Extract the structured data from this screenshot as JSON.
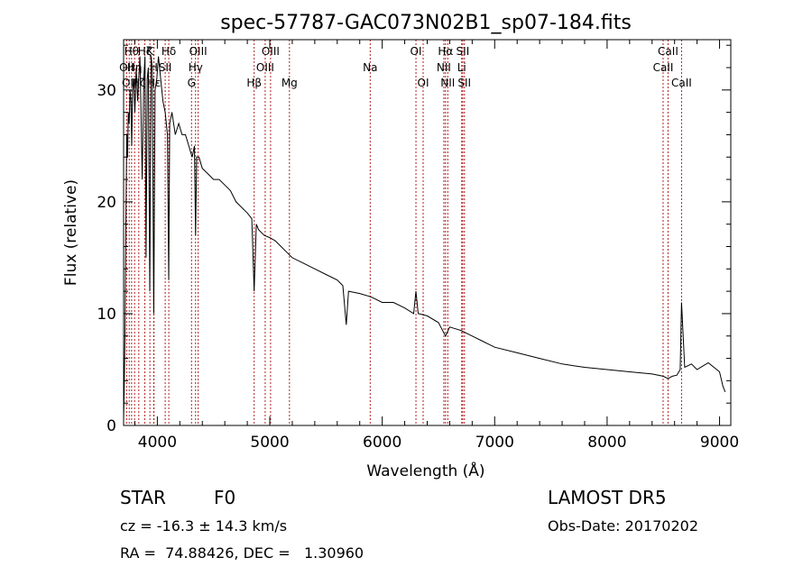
{
  "chart_data": {
    "type": "line",
    "title": "spec-57787-GAC073N02B1_sp07-184.fits",
    "xlabel": "Wavelength (Å)",
    "ylabel": "Flux (relative)",
    "xlim": [
      3700,
      9100
    ],
    "ylim": [
      0,
      34.5
    ],
    "x_ticks": [
      4000,
      5000,
      6000,
      7000,
      8000,
      9000
    ],
    "y_ticks": [
      0,
      10,
      20,
      30
    ],
    "grid": false,
    "series": [
      {
        "color": "#000000",
        "x": [
          3700,
          3705,
          3712,
          3720,
          3728,
          3735,
          3742,
          3750,
          3758,
          3765,
          3772,
          3780,
          3790,
          3800,
          3812,
          3825,
          3835,
          3845,
          3855,
          3865,
          3880,
          3890,
          3900,
          3910,
          3920,
          3933,
          3945,
          3955,
          3968,
          3980,
          3995,
          4010,
          4030,
          4050,
          4070,
          4090,
          4101,
          4110,
          4130,
          4160,
          4190,
          4220,
          4250,
          4280,
          4310,
          4330,
          4340,
          4350,
          4370,
          4400,
          4450,
          4500,
          4550,
          4600,
          4650,
          4700,
          4750,
          4800,
          4840,
          4861,
          4880,
          4900,
          4950,
          5000,
          5050,
          5100,
          5150,
          5200,
          5300,
          5400,
          5500,
          5600,
          5650,
          5680,
          5700,
          5800,
          5900,
          6000,
          6100,
          6200,
          6280,
          6300,
          6320,
          6400,
          6500,
          6563,
          6600,
          6700,
          6800,
          6900,
          7000,
          7200,
          7400,
          7600,
          7800,
          8000,
          8200,
          8400,
          8498,
          8542,
          8580,
          8620,
          8650,
          8662,
          8690,
          8750,
          8800,
          8850,
          8900,
          8950,
          9000,
          9030,
          9050
        ],
        "y": [
          0.5,
          3,
          8,
          18,
          26,
          24,
          28,
          27,
          30,
          29,
          25,
          30,
          31,
          28,
          32,
          29,
          31,
          33,
          28,
          22,
          31,
          33,
          15,
          31,
          32,
          12,
          33,
          32,
          10,
          30,
          31,
          33,
          31,
          29,
          28,
          26,
          13,
          27,
          28,
          26,
          27,
          26,
          26,
          25,
          24,
          25,
          17,
          24,
          24,
          23,
          22.5,
          22,
          22,
          21.5,
          21,
          20,
          19.5,
          19,
          18.5,
          12,
          18,
          17.5,
          17,
          16.8,
          16.5,
          16,
          15.5,
          15,
          14.5,
          14,
          13.5,
          13,
          12.5,
          9,
          12,
          11.8,
          11.5,
          11,
          11,
          10.5,
          10,
          12,
          10,
          9.8,
          9.2,
          8,
          8.8,
          8.5,
          8,
          7.5,
          7,
          6.5,
          6,
          5.5,
          5.2,
          5,
          4.8,
          4.6,
          4.4,
          4.2,
          4.4,
          4.5,
          5,
          11,
          5.2,
          5.5,
          5,
          5.3,
          5.6,
          5.2,
          4.8,
          3.5,
          3
        ]
      }
    ],
    "lines": [
      {
        "x": 3727,
        "label": "OII",
        "row": 2
      },
      {
        "x": 3750,
        "label": "OII",
        "row": 3
      },
      {
        "x": 3771,
        "label": "Hθ",
        "row": 1
      },
      {
        "x": 3798,
        "label": "Hη",
        "row": 2
      },
      {
        "x": 3835,
        "label": "Hζ",
        "row": 3
      },
      {
        "x": 3889,
        "label": "Hζ",
        "row": 1
      },
      {
        "x": 3934,
        "label": "K",
        "row": 1
      },
      {
        "x": 3968,
        "label": "H",
        "row": 2
      },
      {
        "x": 3970,
        "label": "Hε",
        "row": 3
      },
      {
        "x": 4070,
        "label": "SII",
        "row": 2
      },
      {
        "x": 4102,
        "label": "Hδ",
        "row": 1
      },
      {
        "x": 4304,
        "label": "G",
        "row": 3
      },
      {
        "x": 4340,
        "label": "Hγ",
        "row": 2
      },
      {
        "x": 4363,
        "label": "OIII",
        "row": 1
      },
      {
        "x": 4861,
        "label": "Hβ",
        "row": 3
      },
      {
        "x": 4959,
        "label": "OIII",
        "row": 2
      },
      {
        "x": 5007,
        "label": "OIII",
        "row": 1
      },
      {
        "x": 5175,
        "label": "Mg",
        "row": 3
      },
      {
        "x": 5893,
        "label": "Na",
        "row": 2
      },
      {
        "x": 6300,
        "label": "OI",
        "row": 1
      },
      {
        "x": 6364,
        "label": "OI",
        "row": 3
      },
      {
        "x": 6548,
        "label": "NII",
        "row": 2
      },
      {
        "x": 6563,
        "label": "Hα",
        "row": 1
      },
      {
        "x": 6583,
        "label": "NII",
        "row": 3
      },
      {
        "x": 6707,
        "label": "Li",
        "row": 2
      },
      {
        "x": 6716,
        "label": "SII",
        "row": 1
      },
      {
        "x": 6731,
        "label": "SII",
        "row": 3
      },
      {
        "x": 8498,
        "label": "CaII",
        "row": 2
      },
      {
        "x": 8542,
        "label": "CaII",
        "row": 1
      },
      {
        "x": 8662,
        "label": "CaII",
        "row": 3
      }
    ]
  },
  "info": {
    "class": "STAR",
    "subclass": "F0",
    "survey": "LAMOST DR5",
    "redshift": "cz = -16.3 ± 14.3 km/s",
    "obs_date": "Obs-Date: 20170202",
    "coords": "RA =  74.88426, DEC =   1.30960"
  },
  "colors": {
    "spectrum": "#000000",
    "line_markers": "#b22222"
  }
}
